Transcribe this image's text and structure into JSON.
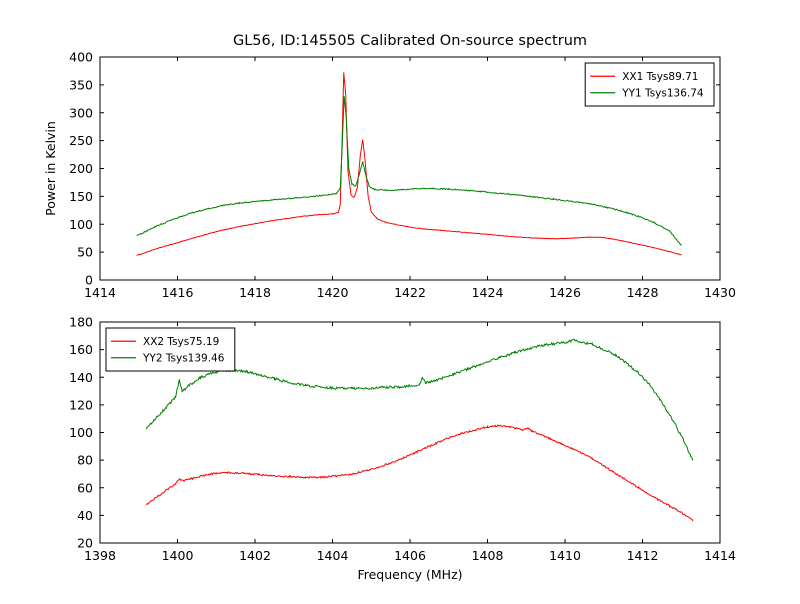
{
  "figure": {
    "background": "#ffffff"
  },
  "chart_data": [
    {
      "type": "line",
      "title": "GL56, ID:145505 Calibrated On-source spectrum",
      "xlabel": "",
      "ylabel": "Power in Kelvin",
      "xlim": [
        1414,
        1430
      ],
      "ylim": [
        0,
        400
      ],
      "xticks": [
        1414,
        1416,
        1418,
        1420,
        1422,
        1424,
        1426,
        1428,
        1430
      ],
      "yticks": [
        0,
        50,
        100,
        150,
        200,
        250,
        300,
        350,
        400
      ],
      "grid": false,
      "legend": {
        "position": "top-right"
      },
      "series": [
        {
          "name": "XX1 Tsys89.71",
          "color": "#ff0000",
          "noise": 0.5,
          "points": [
            [
              1414.95,
              44
            ],
            [
              1415.2,
              50
            ],
            [
              1415.5,
              57
            ],
            [
              1415.8,
              63
            ],
            [
              1416.1,
              69
            ],
            [
              1416.4,
              75
            ],
            [
              1416.8,
              83
            ],
            [
              1417.2,
              90
            ],
            [
              1417.6,
              96
            ],
            [
              1418.0,
              101
            ],
            [
              1418.4,
              106
            ],
            [
              1418.8,
              110
            ],
            [
              1419.2,
              114
            ],
            [
              1419.6,
              117
            ],
            [
              1419.9,
              118
            ],
            [
              1420.05,
              119
            ],
            [
              1420.15,
              121
            ],
            [
              1420.2,
              135
            ],
            [
              1420.24,
              230
            ],
            [
              1420.29,
              372
            ],
            [
              1420.34,
              335
            ],
            [
              1420.4,
              195
            ],
            [
              1420.48,
              152
            ],
            [
              1420.56,
              148
            ],
            [
              1420.64,
              165
            ],
            [
              1420.72,
              225
            ],
            [
              1420.78,
              252
            ],
            [
              1420.84,
              215
            ],
            [
              1420.92,
              150
            ],
            [
              1421.0,
              122
            ],
            [
              1421.15,
              110
            ],
            [
              1421.35,
              104
            ],
            [
              1421.6,
              100
            ],
            [
              1421.9,
              96
            ],
            [
              1422.3,
              92
            ],
            [
              1422.8,
              89
            ],
            [
              1423.3,
              86
            ],
            [
              1423.8,
              83
            ],
            [
              1424.3,
              80
            ],
            [
              1424.8,
              77
            ],
            [
              1425.3,
              75
            ],
            [
              1425.8,
              74
            ],
            [
              1426.2,
              75
            ],
            [
              1426.6,
              77
            ],
            [
              1426.9,
              77
            ],
            [
              1427.2,
              74
            ],
            [
              1427.5,
              70
            ],
            [
              1427.9,
              64
            ],
            [
              1428.3,
              58
            ],
            [
              1428.7,
              51
            ],
            [
              1429.0,
              45
            ]
          ]
        },
        {
          "name": "YY1 Tsys136.74",
          "color": "#008000",
          "noise": 1.0,
          "points": [
            [
              1414.95,
              79
            ],
            [
              1415.2,
              88
            ],
            [
              1415.5,
              98
            ],
            [
              1415.8,
              106
            ],
            [
              1416.1,
              114
            ],
            [
              1416.4,
              121
            ],
            [
              1416.8,
              128
            ],
            [
              1417.2,
              134
            ],
            [
              1417.6,
              138
            ],
            [
              1418.0,
              141
            ],
            [
              1418.5,
              144
            ],
            [
              1419.0,
              147
            ],
            [
              1419.5,
              150
            ],
            [
              1419.9,
              153
            ],
            [
              1420.1,
              155
            ],
            [
              1420.2,
              165
            ],
            [
              1420.25,
              240
            ],
            [
              1420.3,
              330
            ],
            [
              1420.35,
              295
            ],
            [
              1420.42,
              200
            ],
            [
              1420.5,
              172
            ],
            [
              1420.6,
              168
            ],
            [
              1420.7,
              192
            ],
            [
              1420.78,
              212
            ],
            [
              1420.85,
              190
            ],
            [
              1420.95,
              168
            ],
            [
              1421.1,
              162
            ],
            [
              1421.4,
              161
            ],
            [
              1421.8,
              162
            ],
            [
              1422.2,
              164
            ],
            [
              1422.6,
              164
            ],
            [
              1423.0,
              163
            ],
            [
              1423.4,
              161
            ],
            [
              1423.8,
              159
            ],
            [
              1424.2,
              156
            ],
            [
              1424.7,
              153
            ],
            [
              1425.2,
              149
            ],
            [
              1425.7,
              145
            ],
            [
              1426.2,
              141
            ],
            [
              1426.7,
              136
            ],
            [
              1427.1,
              130
            ],
            [
              1427.5,
              123
            ],
            [
              1427.9,
              114
            ],
            [
              1428.3,
              103
            ],
            [
              1428.7,
              88
            ],
            [
              1429.0,
              62
            ]
          ]
        }
      ]
    },
    {
      "type": "line",
      "title": "",
      "xlabel": "Frequency (MHz)",
      "ylabel": "",
      "xlim": [
        1398,
        1414
      ],
      "ylim": [
        20,
        180
      ],
      "xticks": [
        1398,
        1400,
        1402,
        1404,
        1406,
        1408,
        1410,
        1412,
        1414
      ],
      "yticks": [
        20,
        40,
        60,
        80,
        100,
        120,
        140,
        160,
        180
      ],
      "grid": false,
      "legend": {
        "position": "top-left"
      },
      "series": [
        {
          "name": "XX2 Tsys75.19",
          "color": "#ff0000",
          "noise": 0.6,
          "points": [
            [
              1399.2,
              48
            ],
            [
              1399.5,
              54
            ],
            [
              1399.75,
              59
            ],
            [
              1399.95,
              63
            ],
            [
              1400.05,
              66
            ],
            [
              1400.15,
              65
            ],
            [
              1400.4,
              67
            ],
            [
              1400.7,
              69
            ],
            [
              1401.0,
              70.5
            ],
            [
              1401.3,
              71
            ],
            [
              1401.7,
              70.5
            ],
            [
              1402.1,
              69.5
            ],
            [
              1402.5,
              68.5
            ],
            [
              1402.9,
              68
            ],
            [
              1403.3,
              67.5
            ],
            [
              1403.7,
              67.5
            ],
            [
              1404.1,
              68.5
            ],
            [
              1404.5,
              70
            ],
            [
              1404.9,
              72.5
            ],
            [
              1405.3,
              76
            ],
            [
              1405.7,
              80
            ],
            [
              1406.1,
              85
            ],
            [
              1406.5,
              90
            ],
            [
              1406.9,
              95
            ],
            [
              1407.3,
              99
            ],
            [
              1407.7,
              102
            ],
            [
              1408.0,
              104
            ],
            [
              1408.3,
              105
            ],
            [
              1408.6,
              104
            ],
            [
              1408.9,
              102
            ],
            [
              1409.05,
              103
            ],
            [
              1409.15,
              101
            ],
            [
              1409.5,
              97
            ],
            [
              1409.9,
              92
            ],
            [
              1410.3,
              87
            ],
            [
              1410.7,
              81
            ],
            [
              1411.1,
              74
            ],
            [
              1411.5,
              67
            ],
            [
              1411.9,
              60
            ],
            [
              1412.3,
              53
            ],
            [
              1412.7,
              47
            ],
            [
              1413.0,
              42
            ],
            [
              1413.3,
              36
            ]
          ]
        },
        {
          "name": "YY2 Tsys139.46",
          "color": "#008000",
          "noise": 0.9,
          "points": [
            [
              1399.2,
              103
            ],
            [
              1399.5,
              112
            ],
            [
              1399.8,
              121
            ],
            [
              1399.95,
              126
            ],
            [
              1400.05,
              138
            ],
            [
              1400.12,
              130
            ],
            [
              1400.3,
              134
            ],
            [
              1400.6,
              140
            ],
            [
              1400.9,
              143
            ],
            [
              1401.2,
              145
            ],
            [
              1401.5,
              145
            ],
            [
              1401.8,
              144
            ],
            [
              1402.1,
              142
            ],
            [
              1402.5,
              139
            ],
            [
              1402.9,
              136
            ],
            [
              1403.3,
              134
            ],
            [
              1403.7,
              133
            ],
            [
              1404.1,
              132
            ],
            [
              1404.5,
              132
            ],
            [
              1404.9,
              132
            ],
            [
              1405.3,
              132.5
            ],
            [
              1405.7,
              133
            ],
            [
              1406.1,
              134
            ],
            [
              1406.25,
              135
            ],
            [
              1406.32,
              140
            ],
            [
              1406.4,
              136
            ],
            [
              1406.7,
              138
            ],
            [
              1407.1,
              142
            ],
            [
              1407.5,
              146
            ],
            [
              1407.9,
              150
            ],
            [
              1408.3,
              154
            ],
            [
              1408.7,
              158
            ],
            [
              1409.1,
              161
            ],
            [
              1409.5,
              163.5
            ],
            [
              1409.9,
              165
            ],
            [
              1410.15,
              166
            ],
            [
              1410.25,
              167
            ],
            [
              1410.4,
              165
            ],
            [
              1410.7,
              164
            ],
            [
              1411.0,
              160
            ],
            [
              1411.3,
              156
            ],
            [
              1411.6,
              150
            ],
            [
              1411.9,
              143
            ],
            [
              1412.2,
              134
            ],
            [
              1412.5,
              122
            ],
            [
              1412.8,
              108
            ],
            [
              1413.05,
              95
            ],
            [
              1413.3,
              80
            ]
          ]
        }
      ]
    }
  ]
}
